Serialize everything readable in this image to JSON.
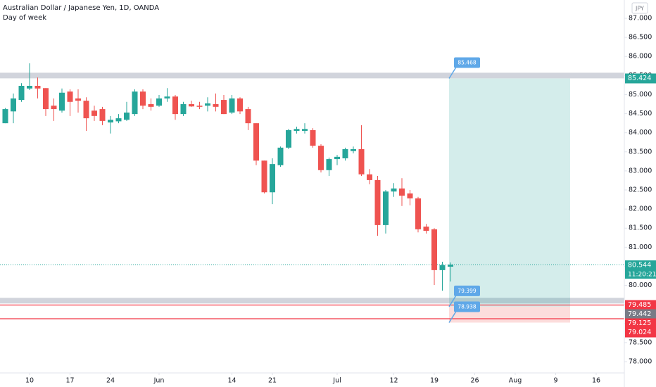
{
  "chart_data": {
    "type": "candlestick",
    "title": "Australian Dollar / Japanese Yen, 1D, OANDA",
    "subtitle": "Day of week",
    "currency": "JPY",
    "categories": [
      null,
      null,
      null,
      "10",
      null,
      null,
      null,
      null,
      "17",
      null,
      null,
      null,
      null,
      "24",
      null,
      null,
      null,
      null,
      null,
      "Jun",
      null,
      null,
      null,
      null,
      null,
      null,
      null,
      null,
      "14",
      null,
      null,
      null,
      null,
      "21",
      null,
      null,
      null,
      null,
      null,
      null,
      null,
      "Jul",
      null,
      null,
      null,
      null,
      null,
      null,
      "12",
      null,
      null,
      null,
      null,
      "19",
      null,
      null,
      null,
      null,
      "26",
      null,
      null,
      null,
      null,
      "Aug",
      null,
      null,
      null,
      null,
      "9",
      null,
      null,
      null,
      null,
      "16",
      null,
      null,
      null
    ],
    "open": [
      84.25,
      84.56,
      84.86,
      85.16,
      85.23,
      85.17,
      84.71,
      84.58,
      85.08,
      84.9,
      84.84,
      84.58,
      84.62,
      84.27,
      84.3,
      84.34,
      84.49,
      85.08,
      84.75,
      84.71,
      84.9,
      84.95,
      84.49,
      84.75,
      84.71,
      84.71,
      84.75,
      84.86,
      84.53,
      84.9,
      84.62,
      84.25,
      83.27,
      82.44,
      83.15,
      83.61,
      84.05,
      84.05,
      84.07,
      83.66,
      83.02,
      83.31,
      83.33,
      83.52,
      83.57,
      82.91,
      82.76,
      81.58,
      82.46,
      82.54,
      82.41,
      82.28,
      81.54,
      81.47,
      80.4,
      80.49,
      null,
      null,
      null,
      null,
      null,
      null,
      null,
      null,
      null,
      null,
      null,
      null,
      null,
      null,
      null,
      null,
      null,
      null,
      null,
      null,
      null
    ],
    "high": [
      84.65,
      85.03,
      85.3,
      85.82,
      85.45,
      85.17,
      84.9,
      85.16,
      85.14,
      85.14,
      84.93,
      84.71,
      84.68,
      84.44,
      84.49,
      84.81,
      85.14,
      85.14,
      84.9,
      84.99,
      85.17,
      84.99,
      84.81,
      84.84,
      84.81,
      84.93,
      85.03,
      84.99,
      84.99,
      84.93,
      84.68,
      84.25,
      83.27,
      83.33,
      83.64,
      84.1,
      84.16,
      84.25,
      84.12,
      83.7,
      83.35,
      83.42,
      83.61,
      83.64,
      84.2,
      83.05,
      82.87,
      82.5,
      82.68,
      82.81,
      82.5,
      82.32,
      81.61,
      81.5,
      80.62,
      80.6,
      null,
      null,
      null,
      null,
      null,
      null,
      null,
      null,
      null,
      null,
      null,
      null,
      null,
      null,
      null,
      null,
      null,
      null,
      null,
      null,
      null
    ],
    "low": [
      84.25,
      84.25,
      84.81,
      85.12,
      84.9,
      84.44,
      84.31,
      84.53,
      84.44,
      84.53,
      84.05,
      84.31,
      84.2,
      83.98,
      84.25,
      84.31,
      84.44,
      84.62,
      84.58,
      84.68,
      84.81,
      84.34,
      84.44,
      84.68,
      84.62,
      84.56,
      84.56,
      84.49,
      84.49,
      84.49,
      84.07,
      83.15,
      82.41,
      82.13,
      83.11,
      83.57,
      83.98,
      83.98,
      83.61,
      82.96,
      82.87,
      83.15,
      83.27,
      83.46,
      82.87,
      82.65,
      81.3,
      81.36,
      82.32,
      82.08,
      82.1,
      81.39,
      81.36,
      80.01,
      79.86,
      80.1,
      null,
      null,
      null,
      null,
      null,
      null,
      null,
      null,
      null,
      null,
      null,
      null,
      null,
      null,
      null,
      null,
      null,
      null,
      null,
      null,
      null
    ],
    "close": [
      84.62,
      84.9,
      85.23,
      85.23,
      85.16,
      84.62,
      84.62,
      85.05,
      84.81,
      84.84,
      84.38,
      84.44,
      84.31,
      84.34,
      84.38,
      84.53,
      85.08,
      84.71,
      84.68,
      84.9,
      84.95,
      84.49,
      84.75,
      84.69,
      84.68,
      84.77,
      84.68,
      84.49,
      84.9,
      84.56,
      84.25,
      83.27,
      82.44,
      83.18,
      83.61,
      84.07,
      84.1,
      84.1,
      83.66,
      83.02,
      83.31,
      83.37,
      83.57,
      83.57,
      82.91,
      82.76,
      81.58,
      82.46,
      82.54,
      82.35,
      82.28,
      81.47,
      81.43,
      80.4,
      80.53,
      80.544,
      null,
      null,
      null,
      null,
      null,
      null,
      null,
      null,
      null,
      null,
      null,
      null,
      null,
      null,
      null,
      null,
      null,
      null,
      null,
      null,
      null
    ],
    "up_color": "#26a69a",
    "down_color": "#ef5350",
    "ylim": [
      77.705,
      87.48
    ],
    "yticks": [
      {
        "value": 78,
        "label": "78.000"
      },
      {
        "value": 78.5,
        "label": "78.500"
      },
      {
        "value": 79,
        "label": "79.000"
      },
      {
        "value": 79.5,
        "label": "79.500"
      },
      {
        "value": 80,
        "label": "80.000"
      },
      {
        "value": 80.5,
        "label": "80.500"
      },
      {
        "value": 81,
        "label": "81.000"
      },
      {
        "value": 81.5,
        "label": "81.500"
      },
      {
        "value": 82,
        "label": "82.000"
      },
      {
        "value": 82.5,
        "label": "82.500"
      },
      {
        "value": 83,
        "label": "83.000"
      },
      {
        "value": 83.5,
        "label": "83.500"
      },
      {
        "value": 84,
        "label": "84.000"
      },
      {
        "value": 84.5,
        "label": "84.500"
      },
      {
        "value": 85,
        "label": "85.000"
      },
      {
        "value": 85.5,
        "label": "85.500"
      },
      {
        "value": 86,
        "label": "86.000"
      },
      {
        "value": 86.5,
        "label": "86.500"
      },
      {
        "value": 87,
        "label": "87.000"
      }
    ],
    "grid": false,
    "last_price": {
      "value": 80.544,
      "label": "80.544"
    },
    "countdown": "11:20:21",
    "position": {
      "target": {
        "value": 85.424,
        "label": "85.424"
      },
      "entry": {
        "value": 79.442,
        "label": "79.442"
      },
      "stop": {
        "value": 79.024,
        "label": "79.024"
      },
      "callouts": [
        "85.468",
        "79.399",
        "78.938"
      ]
    },
    "lines": [
      {
        "value": 79.485,
        "label": "79.485",
        "color": "#f23645"
      },
      {
        "value": 79.125,
        "label": "79.125",
        "color": "#f23645"
      }
    ],
    "zones": [
      85.5,
      79.6
    ]
  }
}
